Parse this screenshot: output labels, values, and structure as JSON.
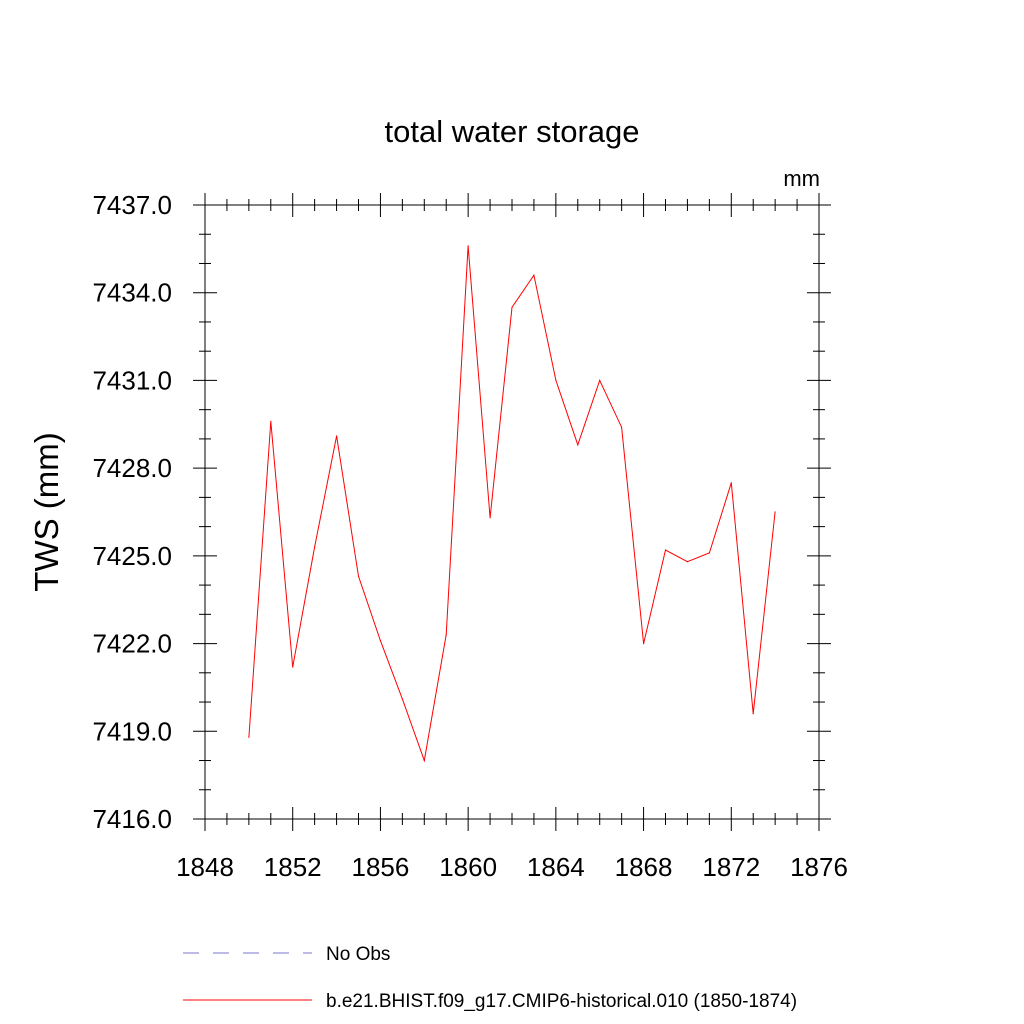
{
  "chart_data": {
    "type": "line",
    "title": "total water storage",
    "units_label": "mm",
    "ylabel": "TWS  (mm)",
    "xlabel": "",
    "xlim": [
      1848,
      1876
    ],
    "ylim": [
      7416.0,
      7437.0
    ],
    "x_ticks": [
      1848,
      1852,
      1856,
      1860,
      1864,
      1868,
      1872,
      1876
    ],
    "x_tick_labels": [
      "1848",
      "1852",
      "1856",
      "1860",
      "1864",
      "1868",
      "1872",
      "1876"
    ],
    "y_ticks": [
      7416,
      7419,
      7422,
      7425,
      7428,
      7431,
      7434,
      7437
    ],
    "y_tick_labels": [
      "7416.0",
      "7419.0",
      "7422.0",
      "7425.0",
      "7428.0",
      "7431.0",
      "7434.0",
      "7437.0"
    ],
    "x_minor_step": 1,
    "y_minor_step": 1,
    "series": [
      {
        "name": "b.e21.BHIST.f09_g17.CMIP6-historical.010 (1850-1874)",
        "color": "#ff0000",
        "style": "solid",
        "x": [
          1850,
          1851,
          1852,
          1853,
          1854,
          1855,
          1856,
          1857,
          1858,
          1859,
          1860,
          1861,
          1862,
          1863,
          1864,
          1865,
          1866,
          1867,
          1868,
          1869,
          1870,
          1871,
          1872,
          1873,
          1874
        ],
        "values": [
          7418.8,
          7429.6,
          7421.2,
          7425.3,
          7429.1,
          7424.3,
          7422.1,
          7420.1,
          7418.0,
          7422.3,
          7435.6,
          7426.3,
          7433.5,
          7434.6,
          7431.0,
          7428.8,
          7431.0,
          7429.4,
          7422.0,
          7425.2,
          7424.8,
          7425.1,
          7427.5,
          7419.6,
          7426.5
        ]
      }
    ],
    "legend": [
      {
        "label": "No Obs",
        "color": "#7777cc",
        "style": "dashed"
      },
      {
        "label": "b.e21.BHIST.f09_g17.CMIP6-historical.010 (1850-1874)",
        "color": "#ff0000",
        "style": "solid"
      }
    ],
    "legend_position": "bottom"
  }
}
